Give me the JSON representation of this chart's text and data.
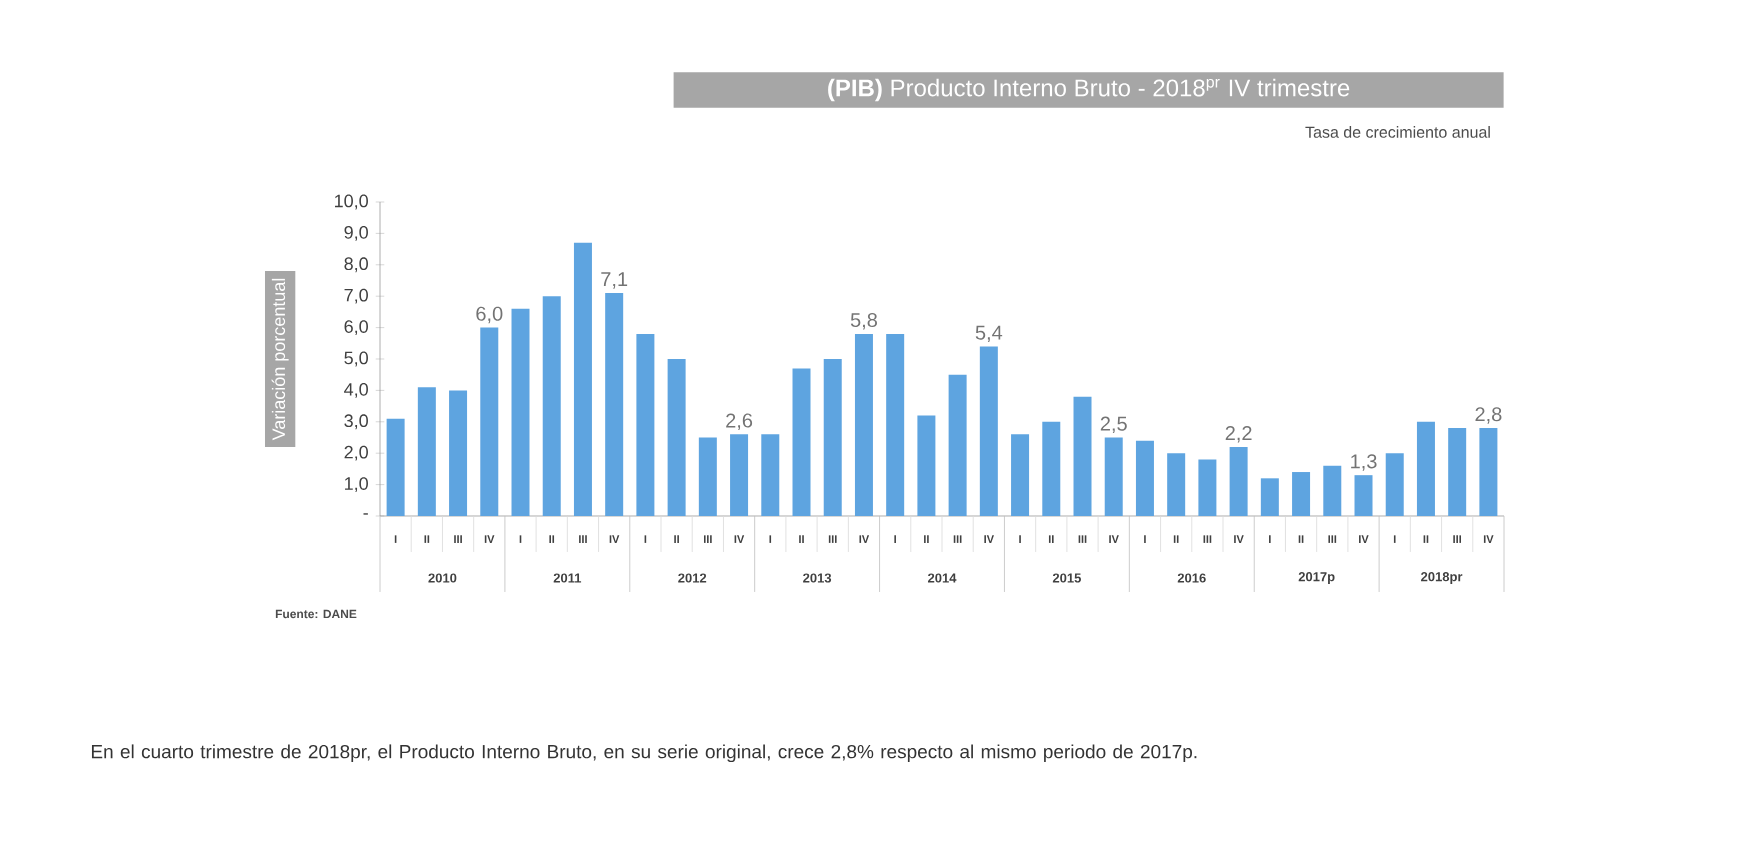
{
  "chart_data": {
    "type": "bar",
    "title": "**(PIB)** Producto Interno Bruto - 2018$^{pr}$ IV trimestre",
    "subtitle": "Tasa de crecimiento anual",
    "ylabel": "Variación porcentual",
    "categories": [
      "I",
      "II",
      "III",
      "IV",
      "I",
      "II",
      "III",
      "IV",
      "I",
      "II",
      "III",
      "IV",
      "I",
      "II",
      "III",
      "IV",
      "I",
      "II",
      "III",
      "IV",
      "I",
      "II",
      "III",
      "IV",
      "I",
      "II",
      "III",
      "IV",
      "I",
      "II",
      "III",
      "IV",
      "I",
      "II",
      "III",
      "IV"
    ],
    "values": [
      3.1,
      4.1,
      4.0,
      6.0,
      6.6,
      7.0,
      8.7,
      7.1,
      5.8,
      5.0,
      2.5,
      2.6,
      2.6,
      4.7,
      5.0,
      5.8,
      5.8,
      3.2,
      4.5,
      5.4,
      2.6,
      3.0,
      3.8,
      2.5,
      2.4,
      2.0,
      1.8,
      2.2,
      1.2,
      1.4,
      1.6,
      1.3,
      2.0,
      3.0,
      2.8,
      2.8
    ],
    "value_labels": [
      null,
      null,
      null,
      "6,0",
      null,
      null,
      null,
      "7,1",
      null,
      null,
      null,
      "2,6",
      null,
      null,
      null,
      "5,8",
      null,
      null,
      null,
      "5,4",
      null,
      null,
      null,
      "2,5",
      null,
      null,
      null,
      "2,2",
      null,
      null,
      null,
      "1,3",
      null,
      null,
      null,
      "2,8"
    ],
    "color": "#5ea4e0",
    "ylim": [
      0,
      10
    ],
    "yticks": [
      {
        "value": 0,
        "label": "-"
      },
      {
        "value": 1,
        "label": "1,0"
      },
      {
        "value": 2,
        "label": "2,0"
      },
      {
        "value": 3,
        "label": "3,0"
      },
      {
        "value": 4,
        "label": "4,0"
      },
      {
        "value": 5,
        "label": "5,0"
      },
      {
        "value": 6,
        "label": "6,0"
      },
      {
        "value": 7,
        "label": "7,0"
      },
      {
        "value": 8,
        "label": "8,0"
      },
      {
        "value": 9,
        "label": "9,0"
      },
      {
        "value": 10,
        "label": "10,0"
      }
    ],
    "annotations": [
      "2010",
      "2011",
      "2012",
      "2013",
      "2014",
      "2015",
      "2016",
      "2017p",
      "2018pr",
      "Fuente: DANE",
      "En el cuarto trimestre de 2018pr, el Producto Interno Bruto, en su serie original, crece 2,8% respecto al mismo periodo de 2017p."
    ]
  }
}
